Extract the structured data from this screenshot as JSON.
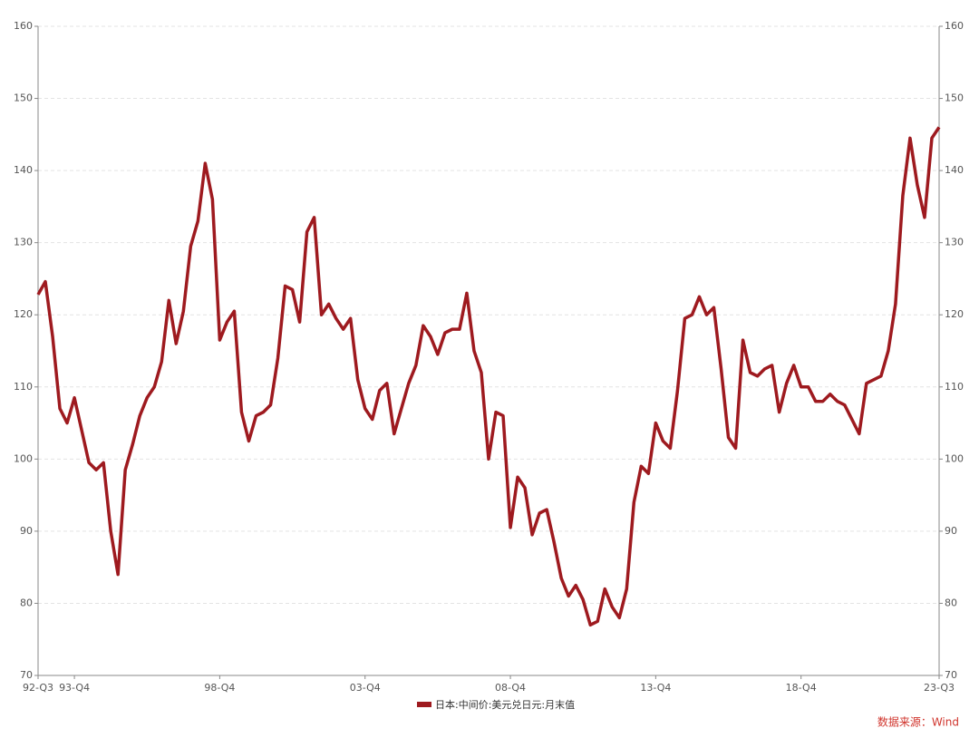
{
  "chart_data": {
    "type": "line",
    "categories": [
      "92-Q3",
      null,
      null,
      null,
      null,
      "93-Q4",
      null,
      null,
      null,
      null,
      null,
      null,
      null,
      null,
      null,
      null,
      null,
      null,
      null,
      null,
      null,
      null,
      null,
      null,
      null,
      "98-Q4",
      null,
      null,
      null,
      null,
      null,
      null,
      null,
      null,
      null,
      null,
      null,
      null,
      null,
      null,
      null,
      null,
      null,
      null,
      null,
      "03-Q4",
      null,
      null,
      null,
      null,
      null,
      null,
      null,
      null,
      null,
      null,
      null,
      null,
      null,
      null,
      null,
      null,
      null,
      null,
      null,
      "08-Q4",
      null,
      null,
      null,
      null,
      null,
      null,
      null,
      null,
      null,
      null,
      null,
      null,
      null,
      null,
      null,
      null,
      null,
      null,
      null,
      "13-Q4",
      null,
      null,
      null,
      null,
      null,
      null,
      null,
      null,
      null,
      null,
      null,
      null,
      null,
      null,
      null,
      null,
      null,
      null,
      null,
      "18-Q4",
      null,
      null,
      null,
      null,
      null,
      null,
      null,
      null,
      null,
      null,
      null,
      null,
      null,
      null,
      null,
      null,
      null,
      null,
      "23-Q3"
    ],
    "series": [
      {
        "name": "日本:中间价:美元兑日元:月末值",
        "color": "#9e1a1f",
        "values": [
          122.8,
          124.6,
          117,
          107,
          105,
          108.5,
          104,
          99.5,
          98.5,
          99.5,
          90,
          84,
          98.5,
          102,
          106,
          108.5,
          110,
          113.5,
          122,
          116,
          120.5,
          129.5,
          133,
          141,
          136,
          116.5,
          119,
          120.5,
          106.5,
          102.5,
          106,
          106.5,
          107.5,
          114,
          124,
          123.5,
          119,
          131.5,
          133.5,
          120,
          121.5,
          119.5,
          118,
          119.5,
          111,
          107,
          105.5,
          109.5,
          110.5,
          103.5,
          107,
          110.5,
          113,
          118.5,
          117,
          114.5,
          117.5,
          118,
          118,
          123,
          115,
          112,
          100,
          106.5,
          106,
          90.5,
          97.5,
          96,
          89.5,
          92.5,
          93,
          88.5,
          83.5,
          81,
          82.5,
          80.5,
          77,
          77.5,
          82,
          79.5,
          78,
          82,
          94,
          99,
          98,
          105,
          102.5,
          101.5,
          109.5,
          119.5,
          120,
          122.5,
          120,
          121,
          112.5,
          103,
          101.5,
          116.5,
          112,
          111.5,
          112.5,
          113,
          106.5,
          110.5,
          113,
          110,
          110,
          108,
          108,
          109,
          108,
          107.5,
          105.5,
          103.5,
          110.5,
          111,
          111.5,
          115,
          121.5,
          136.5,
          144.5,
          138,
          133.5,
          144.5,
          146
        ]
      }
    ],
    "ylim": [
      70,
      160
    ],
    "yticks": [
      70,
      80,
      90,
      100,
      110,
      120,
      130,
      140,
      150,
      160
    ],
    "y2lim": [
      70,
      160
    ],
    "y2ticks": [
      70,
      80,
      90,
      100,
      110,
      120,
      130,
      140,
      150,
      160
    ],
    "grid": true,
    "legend": "bottom",
    "source": "数据来源：Wind"
  }
}
